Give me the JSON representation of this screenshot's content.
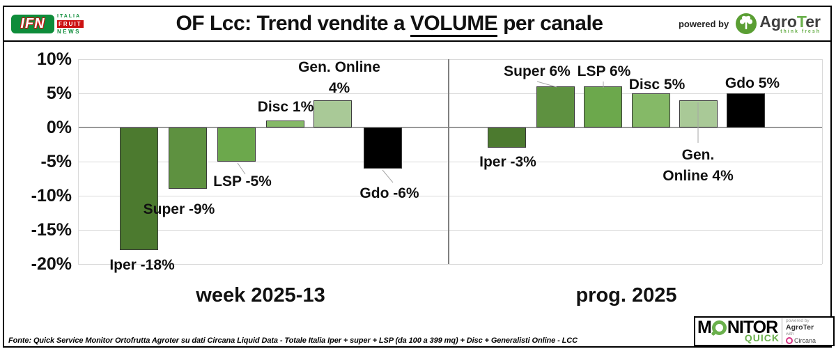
{
  "header": {
    "ifn_logo": {
      "acronym": "IFN",
      "word1": "ITALIA",
      "word2": "FRUIT",
      "word3": "NEWS"
    },
    "title_prefix": "OF Lcc: Trend vendite a ",
    "title_emphasis": "VOLUME",
    "title_suffix": " per canale",
    "powered_by_label": "powered by",
    "agroter_name_pre": "Agro",
    "agroter_name_mid": "T",
    "agroter_name_post": "er",
    "agroter_tagline": "think fresh"
  },
  "chart_data": {
    "type": "bar",
    "title": "OF Lcc: Trend vendite a VOLUME per canale",
    "xlabel": "",
    "ylabel": "",
    "ylim": [
      -20,
      10
    ],
    "ytick_step": 5,
    "yticks": [
      "10%",
      "5%",
      "0%",
      "-5%",
      "-10%",
      "-15%",
      "-20%"
    ],
    "grid": true,
    "legend": "none",
    "groups": [
      {
        "label": "week 2025-13",
        "bars": [
          {
            "category": "Iper",
            "value": -18,
            "label_lines": [
              "Iper -18%"
            ],
            "color": "#4C7A2F"
          },
          {
            "category": "Super",
            "value": -9,
            "label_lines": [
              "Super -9%"
            ],
            "color": "#5E9140"
          },
          {
            "category": "LSP",
            "value": -5,
            "label_lines": [
              "LSP -5%"
            ],
            "color": "#6CA84C"
          },
          {
            "category": "Disc",
            "value": 1,
            "label_lines": [
              "Disc 1%"
            ],
            "color": "#85B967"
          },
          {
            "category": "Gen. Online",
            "value": 4,
            "label_lines": [
              "Gen. Online",
              "4%"
            ],
            "color": "#A9C997"
          },
          {
            "category": "Gdo",
            "value": -6,
            "label_lines": [
              "Gdo -6%"
            ],
            "color": "#000000"
          }
        ]
      },
      {
        "label": "prog. 2025",
        "bars": [
          {
            "category": "Iper",
            "value": -3,
            "label_lines": [
              "Iper -3%"
            ],
            "color": "#4C7A2F"
          },
          {
            "category": "Super",
            "value": 6,
            "label_lines": [
              "Super 6%"
            ],
            "color": "#5E9140"
          },
          {
            "category": "LSP",
            "value": 6,
            "label_lines": [
              "LSP 6%"
            ],
            "color": "#6CA84C"
          },
          {
            "category": "Disc",
            "value": 5,
            "label_lines": [
              "Disc 5%"
            ],
            "color": "#85B967"
          },
          {
            "category": "Gen. Online",
            "value": 4,
            "label_lines": [
              "Gen.",
              "Online 4%"
            ],
            "color": "#A9C997"
          },
          {
            "category": "Gdo",
            "value": 5,
            "label_lines": [
              "Gdo 5%"
            ],
            "color": "#000000"
          }
        ]
      }
    ]
  },
  "footer": {
    "source": "Fonte: Quick Service Monitor Ortofrutta Agroter su dati Circana Liquid Data - Totale Italia Iper + super + LSP (da 100 a 399 mq) + Disc + Generalisti Online - LCC",
    "monitor_quick": {
      "text_before_lens": "M",
      "text_after_lens": "NITOR",
      "subtitle": "QUICK",
      "powered_by": "powered by",
      "partner1": "AgroTer",
      "conjunction": "with",
      "partner2": "Circana"
    }
  },
  "colors": {
    "bar_green_dark": "#4C7A2F",
    "bar_green_mid_dark": "#5E9140",
    "bar_green": "#6CA84C",
    "bar_green_light": "#85B967",
    "bar_green_pale": "#A9C997",
    "bar_black": "#000000",
    "brand_green": "#6AB04C",
    "ifn_green": "#0E8C3A",
    "ifn_red": "#CC1111",
    "circana_pink": "#D63384",
    "zero_line_gray": "#9A9A9A",
    "gridline_gray": "#D9D9D9"
  }
}
